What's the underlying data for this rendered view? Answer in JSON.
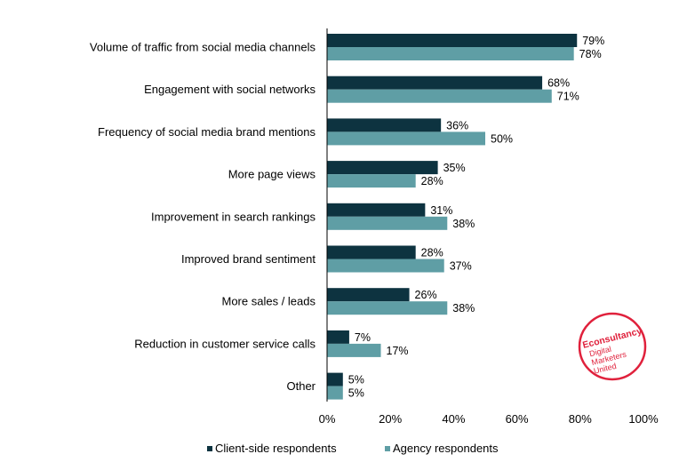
{
  "chart_data": {
    "type": "bar",
    "orientation": "horizontal",
    "categories": [
      "Volume of traffic from social media channels",
      "Engagement with social networks",
      "Frequency of social media brand mentions",
      "More page views",
      "Improvement in search rankings",
      "Improved brand sentiment",
      "More sales / leads",
      "Reduction in customer service calls",
      "Other"
    ],
    "series": [
      {
        "name": "Client-side respondents",
        "color": "#0d3340",
        "values": [
          79,
          68,
          36,
          35,
          31,
          28,
          26,
          7,
          5
        ]
      },
      {
        "name": "Agency respondents",
        "color": "#5f9ea5",
        "values": [
          78,
          71,
          50,
          28,
          38,
          37,
          38,
          17,
          5
        ]
      }
    ],
    "xlim": [
      0,
      100
    ],
    "xticks": [
      "0%",
      "20%",
      "40%",
      "60%",
      "80%",
      "100%"
    ],
    "value_suffix": "%",
    "grid": false,
    "legend_position": "bottom"
  },
  "logo": {
    "brand": "Econsultancy",
    "lines": [
      "Digital",
      "Marketers",
      "United"
    ],
    "color": "#e0213c"
  }
}
